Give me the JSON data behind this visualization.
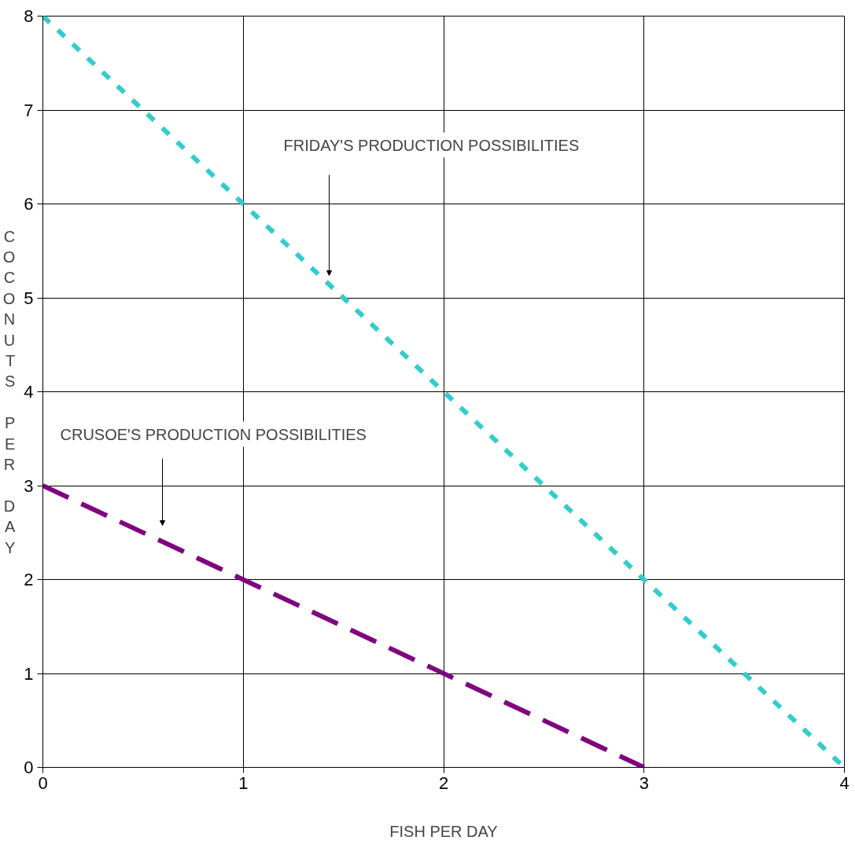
{
  "chart_data": {
    "type": "line",
    "xlabel": "FISH PER DAY",
    "ylabel": "COCONUTS PER DAY",
    "series": [
      {
        "x": [
          0,
          4
        ],
        "values": [
          8,
          0
        ],
        "color": "#33cccc",
        "line_style": "dotted"
      },
      {
        "x": [
          0,
          3
        ],
        "values": [
          3,
          0
        ],
        "color": "#800080",
        "line_style": "dashed"
      }
    ],
    "annotations": [
      "FRIDAY'S PRODUCTION POSSIBILITIES",
      "CRUSOE'S PRODUCTION POSSIBILITIES"
    ],
    "xlim": [
      0,
      4
    ],
    "ylim": [
      0,
      8
    ],
    "xticks": [
      0,
      1,
      2,
      3,
      4
    ],
    "yticks": [
      0,
      1,
      2,
      3,
      4,
      5,
      6,
      7,
      8
    ],
    "grid": true,
    "marker": "none"
  }
}
